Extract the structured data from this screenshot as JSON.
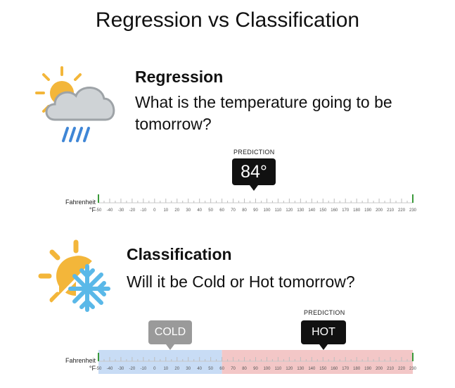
{
  "title": "Regression vs Classification",
  "regression": {
    "heading": "Regression",
    "question": "What is the temperature going to be tomorrow?",
    "icon": "sun-cloud-rain-icon",
    "prediction_label": "PREDICTION",
    "prediction_value": "84°",
    "prediction_temp": 84,
    "unit_label_top": "Fahrenheit",
    "unit_label_bottom": "°F"
  },
  "classification": {
    "heading": "Classification",
    "question": "Will it be Cold or Hot tomorrow?",
    "icon": "sun-snowflake-icon",
    "cold_label": "COLD",
    "cold_temp": 10,
    "hot_label": "HOT",
    "hot_temp": 150,
    "prediction_label": "PREDICTION",
    "boundary_temp": 60,
    "unit_label_top": "Fahrenheit",
    "unit_label_bottom": "°F"
  },
  "scale": {
    "min": -50,
    "max": 230,
    "step": 10,
    "ticks": [
      "-50",
      "-40",
      "-30",
      "-20",
      "-10",
      "0",
      "10",
      "20",
      "30",
      "40",
      "50",
      "60",
      "70",
      "80",
      "90",
      "100",
      "110",
      "120",
      "130",
      "140",
      "150",
      "160",
      "170",
      "180",
      "190",
      "200",
      "210",
      "220",
      "230"
    ]
  },
  "colors": {
    "scale_end": "#3a9a3a",
    "cold_fill": "#c8dcf5",
    "hot_fill": "#f3c7c7",
    "callout_dark": "#111111",
    "callout_gray": "#9a9a9a",
    "sun": "#f3b63a",
    "cloud": "#cfd3d6",
    "rain": "#3f86d6",
    "snow": "#5ab8e8"
  }
}
